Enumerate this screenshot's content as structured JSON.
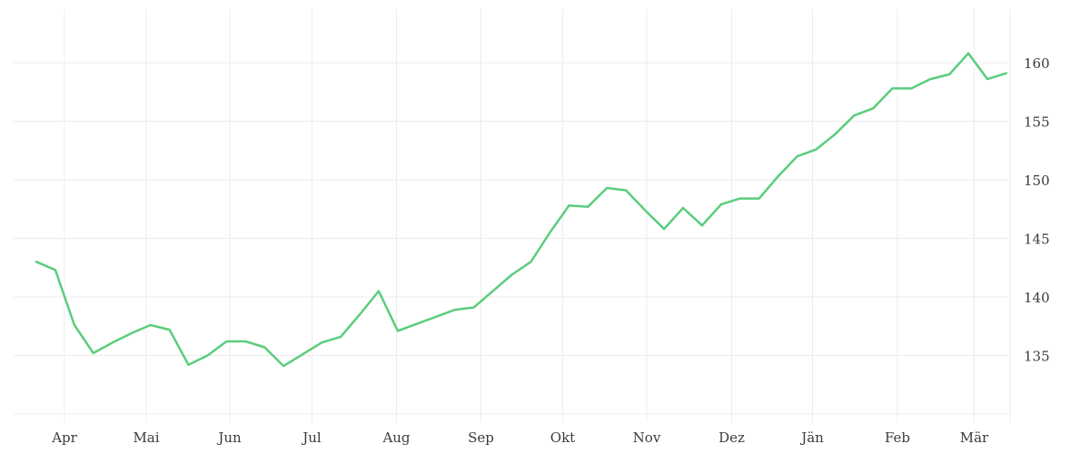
{
  "chart_data": {
    "type": "line",
    "title": "",
    "xlabel": "",
    "ylabel": "",
    "y_axis_side": "right",
    "grid": true,
    "legend": "none",
    "background_color": "#ffffff",
    "grid_color": "#ececec",
    "label_color": "#3b3b3b",
    "line_color": "#5bcd7d",
    "x_tick_labels": [
      "Apr",
      "Mai",
      "Jun",
      "Jul",
      "Aug",
      "Sep",
      "Okt",
      "Nov",
      "Dez",
      "Jän",
      "Feb",
      "Mär"
    ],
    "y_tick_labels": [
      "160",
      "155",
      "150",
      "145",
      "140",
      "135"
    ],
    "y_ticks": [
      160,
      155,
      150,
      145,
      140,
      135
    ],
    "ylim": [
      130,
      162
    ],
    "series": [
      {
        "name": "price",
        "interval": "weekly",
        "values": [
          143.0,
          142.3,
          137.6,
          135.2,
          136.1,
          136.9,
          137.6,
          137.2,
          134.2,
          135.0,
          136.2,
          136.2,
          135.7,
          134.1,
          135.1,
          136.1,
          136.6,
          138.5,
          140.5,
          137.1,
          137.7,
          138.3,
          138.9,
          139.1,
          140.5,
          141.9,
          143.0,
          145.5,
          147.8,
          147.7,
          149.3,
          149.1,
          147.4,
          145.8,
          147.6,
          146.1,
          147.9,
          148.4,
          148.4,
          150.3,
          152.0,
          152.6,
          153.9,
          155.5,
          156.1,
          157.8,
          157.8,
          158.6,
          159.0,
          160.8,
          158.6,
          159.1
        ]
      }
    ]
  }
}
